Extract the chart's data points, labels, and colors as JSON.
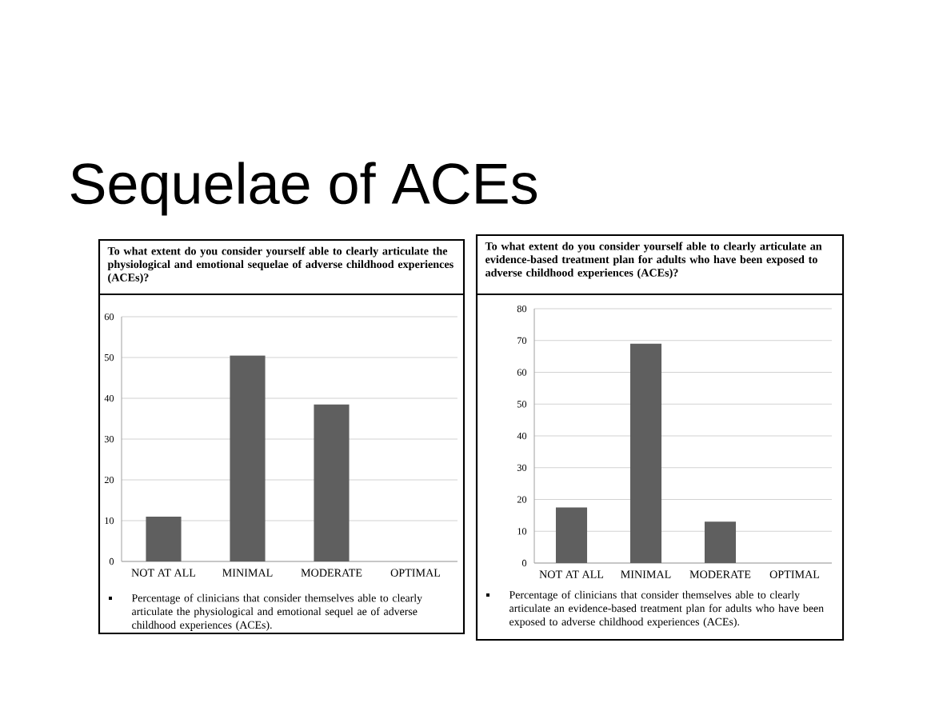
{
  "chart_data": [
    {
      "type": "other",
      "title": "Sequelae of ACEs"
    },
    {
      "type": "bar",
      "title": "To what extent do you consider yourself able to clearly articulate the physiological and emotional sequelae of adverse childhood experiences (ACEs)?",
      "categories": [
        "NOT AT ALL",
        "MINIMAL",
        "MODERATE",
        "OPTIMAL"
      ],
      "values": [
        11,
        50.5,
        38.5,
        0
      ],
      "color": "#5f5f5f",
      "ylim": [
        0,
        60
      ],
      "yticks": [
        0,
        10,
        20,
        30,
        40,
        50,
        60
      ],
      "grid": "y",
      "annotations": [
        "Percentage of clinicians that consider themselves able to clearly articulate the physiological and emotional sequel ae of adverse childhood experiences (ACEs)."
      ]
    },
    {
      "type": "bar",
      "title": "To what extent do you consider yourself able to clearly articulate an evidence-based treatment plan for adults who have been exposed to adverse childhood experiences (ACEs)?",
      "categories": [
        "NOT AT ALL",
        "MINIMAL",
        "MODERATE",
        "OPTIMAL"
      ],
      "values": [
        17.5,
        69,
        13,
        0
      ],
      "color": "#5f5f5f",
      "ylim": [
        0,
        80
      ],
      "yticks": [
        0,
        10,
        20,
        30,
        40,
        50,
        60,
        70,
        80
      ],
      "grid": "y",
      "annotations": [
        "Percentage of clinicians that consider themselves able  to clearly articulate an evidence-based treatment plan for adults who have been exposed to adverse childhood experiences (ACEs)."
      ]
    }
  ]
}
